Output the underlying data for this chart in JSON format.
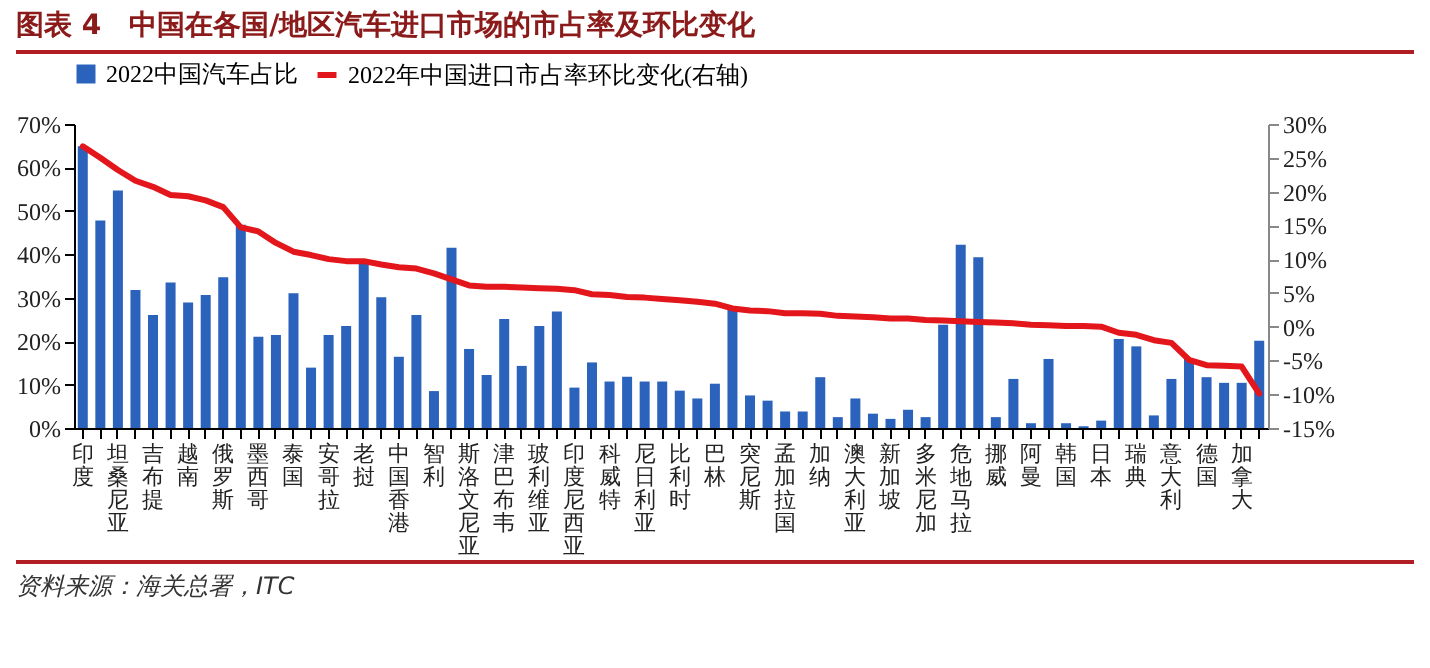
{
  "chart_data": {
    "type": "bar",
    "title": "图表 4　中国在各国/地区汽车进口市场的市占率及环比变化",
    "categories": [
      "印度",
      null,
      "坦桑尼亚",
      null,
      "吉布提",
      null,
      "越南",
      null,
      "俄罗斯",
      null,
      "墨西哥",
      null,
      "泰国",
      null,
      "安哥拉",
      null,
      "老挝",
      null,
      "中国香港",
      null,
      "智利",
      null,
      "斯洛文尼亚",
      null,
      "津巴布韦",
      null,
      "玻利维亚",
      null,
      "印度尼西亚",
      null,
      "科威特",
      null,
      "尼日利亚",
      null,
      "比利时",
      null,
      "巴林",
      null,
      "突尼斯",
      null,
      "孟加拉国",
      null,
      "加纳",
      null,
      "澳大利亚",
      null,
      "新加坡",
      null,
      "多米尼加",
      null,
      "危地马拉",
      null,
      "挪威",
      null,
      "阿曼",
      null,
      "韩国",
      null,
      "日本",
      null,
      "瑞典",
      null,
      "意大利",
      null,
      "德国",
      null,
      "加拿大",
      null
    ],
    "series": [
      {
        "name": "2022中国汽车占比",
        "color": "#2a62bc",
        "values": [
          64.9,
          47.8,
          54.7,
          31.8,
          26.0,
          33.5,
          28.9,
          30.6,
          34.7,
          46.8,
          21.0,
          21.4,
          31.0,
          13.9,
          21.4,
          23.5,
          37.8,
          30.1,
          16.4,
          26.0,
          8.5,
          41.5,
          18.2,
          12.2,
          25.1,
          14.3,
          23.5,
          26.8,
          9.3,
          15.1,
          10.7,
          11.8,
          10.7,
          10.7,
          8.6,
          6.8,
          10.2,
          27.3,
          7.5,
          6.3,
          3.8,
          3.8,
          11.7,
          2.5,
          6.8,
          3.3,
          2.1,
          4.2,
          2.5,
          23.8,
          42.2,
          39.3,
          2.5,
          11.3,
          1.1,
          15.9,
          1.1,
          0.4,
          1.7,
          20.5,
          18.8,
          2.9,
          11.3,
          15.9,
          11.7,
          10.4,
          10.4,
          20.1
        ]
      },
      {
        "name": "2022年中国进口市占率环比变化(右轴)",
        "type": "line",
        "axis": "y2",
        "color": "#e3161b",
        "values": [
          26.7,
          25.0,
          23.2,
          21.6,
          20.7,
          19.5,
          19.3,
          18.7,
          17.7,
          14.7,
          14.1,
          12.4,
          11.1,
          10.6,
          10.0,
          9.7,
          9.7,
          9.2,
          8.8,
          8.6,
          7.9,
          7.0,
          6.1,
          5.9,
          5.9,
          5.8,
          5.7,
          5.6,
          5.4,
          4.8,
          4.7,
          4.4,
          4.3,
          4.1,
          3.9,
          3.7,
          3.4,
          2.7,
          2.4,
          2.3,
          2.0,
          2.0,
          1.9,
          1.6,
          1.5,
          1.4,
          1.2,
          1.2,
          1.0,
          0.9,
          0.8,
          0.7,
          0.6,
          0.5,
          0.3,
          0.2,
          0.1,
          0.1,
          0.0,
          -0.9,
          -1.2,
          -2.0,
          -2.4,
          -4.9,
          -5.7,
          -5.8,
          -5.9,
          -9.9
        ]
      }
    ],
    "ylim": [
      0,
      70
    ],
    "yticks": [
      {
        "value": 0,
        "label": "0%"
      },
      {
        "value": 10,
        "label": "10%"
      },
      {
        "value": 20,
        "label": "20%"
      },
      {
        "value": 30,
        "label": "30%"
      },
      {
        "value": 40,
        "label": "40%"
      },
      {
        "value": 50,
        "label": "50%"
      },
      {
        "value": 60,
        "label": "60%"
      },
      {
        "value": 70,
        "label": "70%"
      }
    ],
    "y2lim": [
      -15,
      30
    ],
    "y2ticks": [
      {
        "value": -15,
        "label": "-15%"
      },
      {
        "value": -10,
        "label": "-10%"
      },
      {
        "value": -5,
        "label": "-5%"
      },
      {
        "value": 0,
        "label": "0%"
      },
      {
        "value": 5,
        "label": "5%"
      },
      {
        "value": 10,
        "label": "10%"
      },
      {
        "value": 15,
        "label": "15%"
      },
      {
        "value": 20,
        "label": "20%"
      },
      {
        "value": 25,
        "label": "25%"
      },
      {
        "value": 30,
        "label": "30%"
      }
    ],
    "legend": "top",
    "grid": false,
    "marker": "none",
    "line_style": "solid",
    "annotations": [
      "资料来源：海关总署，ITC"
    ]
  }
}
